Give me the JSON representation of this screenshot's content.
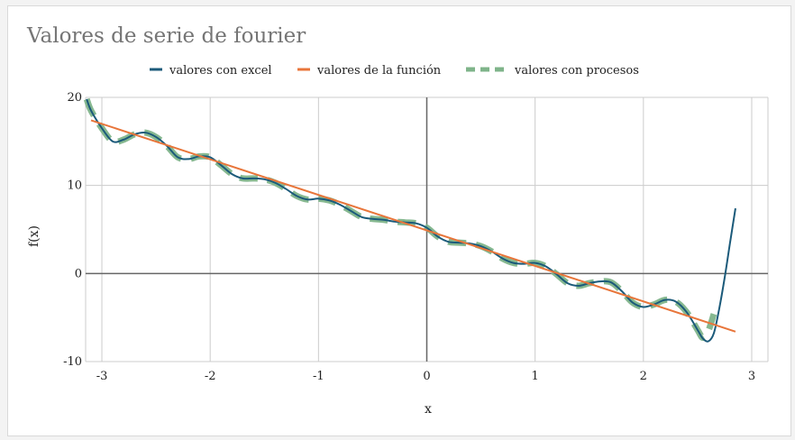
{
  "chart_data": {
    "type": "line",
    "title": "Valores de serie de fourier",
    "xlabel": "x",
    "ylabel": "f(x)",
    "xlim": [
      -3.15,
      3.15
    ],
    "ylim": [
      -10,
      20
    ],
    "xticks": [
      -3,
      -2,
      -1,
      0,
      1,
      2,
      3
    ],
    "yticks": [
      -10,
      0,
      10,
      20
    ],
    "grid": true,
    "legend_position": "top",
    "series": [
      {
        "name": "valores con excel",
        "color": "#1b5a7a",
        "style": "solid",
        "x": [
          -3.14,
          -3.1,
          -3.0,
          -2.9,
          -2.8,
          -2.7,
          -2.6,
          -2.5,
          -2.4,
          -2.3,
          -2.2,
          -2.1,
          -2.0,
          -1.9,
          -1.8,
          -1.7,
          -1.6,
          -1.5,
          -1.4,
          -1.3,
          -1.2,
          -1.1,
          -1.0,
          -0.9,
          -0.8,
          -0.7,
          -0.6,
          -0.5,
          -0.4,
          -0.3,
          -0.2,
          -0.1,
          0.0,
          0.1,
          0.2,
          0.3,
          0.4,
          0.5,
          0.6,
          0.7,
          0.8,
          0.9,
          1.0,
          1.1,
          1.2,
          1.3,
          1.4,
          1.5,
          1.6,
          1.7,
          1.8,
          1.9,
          2.0,
          2.1,
          2.2,
          2.3,
          2.4,
          2.5,
          2.55,
          2.6,
          2.65,
          2.7,
          2.75,
          2.8,
          2.85
        ],
        "y": [
          19.8,
          18.5,
          16.5,
          15.0,
          15.2,
          15.8,
          16.0,
          15.5,
          14.5,
          13.2,
          13.0,
          13.3,
          13.2,
          12.3,
          11.3,
          10.8,
          10.8,
          10.7,
          10.3,
          9.6,
          8.8,
          8.4,
          8.5,
          8.3,
          7.8,
          7.1,
          6.4,
          6.2,
          6.1,
          5.9,
          5.8,
          5.7,
          5.2,
          4.2,
          3.6,
          3.5,
          3.4,
          3.1,
          2.5,
          1.7,
          1.2,
          1.1,
          1.2,
          0.8,
          -0.1,
          -1.1,
          -1.4,
          -1.1,
          -0.9,
          -1.0,
          -2.0,
          -3.3,
          -3.8,
          -3.5,
          -3.0,
          -3.2,
          -4.4,
          -6.4,
          -7.4,
          -7.7,
          -6.8,
          -4.0,
          -0.5,
          3.5,
          7.4
        ]
      },
      {
        "name": "valores de la función",
        "color": "#e8753a",
        "style": "solid",
        "x": [
          -3.1,
          2.85
        ],
        "y": [
          17.4,
          -6.6
        ]
      },
      {
        "name": "valores con procesos",
        "color": "#7fb48a",
        "style": "dashed",
        "x": [
          -3.14,
          -3.1,
          -3.0,
          -2.9,
          -2.8,
          -2.7,
          -2.6,
          -2.5,
          -2.4,
          -2.3,
          -2.2,
          -2.1,
          -2.0,
          -1.9,
          -1.8,
          -1.7,
          -1.6,
          -1.5,
          -1.4,
          -1.3,
          -1.2,
          -1.1,
          -1.0,
          -0.9,
          -0.8,
          -0.7,
          -0.6,
          -0.5,
          -0.4,
          -0.3,
          -0.2,
          -0.1,
          0.0,
          0.1,
          0.2,
          0.3,
          0.4,
          0.5,
          0.6,
          0.7,
          0.8,
          0.9,
          1.0,
          1.1,
          1.2,
          1.3,
          1.4,
          1.5,
          1.6,
          1.7,
          1.8,
          1.9,
          2.0,
          2.1,
          2.2,
          2.3,
          2.4,
          2.5,
          2.55,
          2.6,
          2.65
        ],
        "y": [
          19.8,
          18.5,
          16.5,
          15.0,
          15.2,
          15.8,
          16.0,
          15.5,
          14.5,
          13.2,
          13.0,
          13.3,
          13.2,
          12.3,
          11.3,
          10.8,
          10.8,
          10.7,
          10.3,
          9.6,
          8.8,
          8.4,
          8.5,
          8.3,
          7.8,
          7.1,
          6.4,
          6.2,
          6.1,
          5.9,
          5.8,
          5.7,
          5.2,
          4.2,
          3.6,
          3.5,
          3.4,
          3.1,
          2.5,
          1.7,
          1.2,
          1.1,
          1.2,
          0.8,
          -0.1,
          -1.1,
          -1.4,
          -1.1,
          -0.9,
          -1.0,
          -2.0,
          -3.3,
          -3.8,
          -3.5,
          -3.0,
          -3.2,
          -4.4,
          -6.4,
          -7.3,
          -6.5,
          -4.6
        ]
      }
    ]
  }
}
